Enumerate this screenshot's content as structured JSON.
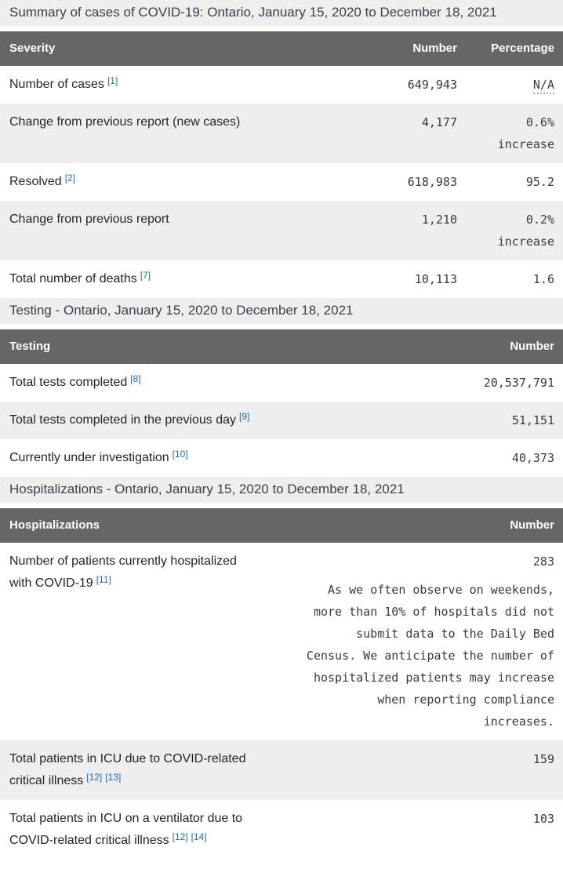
{
  "report": {
    "tables": [
      {
        "caption": "Summary of cases of COVID-19: Ontario, January 15, 2020 to December 18, 2021",
        "columns": [
          "Severity",
          "Number",
          "Percentage"
        ],
        "rows": [
          {
            "label": "Number of cases",
            "refs": [
              "[1]"
            ],
            "number": "649,943",
            "percentage": "N/A",
            "na_tooltip": true
          },
          {
            "label": "Change from previous report (new cases)",
            "refs": [],
            "number": "4,177",
            "percentage": "0.6% increase"
          },
          {
            "label": "Resolved",
            "refs": [
              "[2]"
            ],
            "number": "618,983",
            "percentage": "95.2"
          },
          {
            "label": "Change from previous report",
            "refs": [],
            "number": "1,210",
            "percentage": "0.2% increase"
          },
          {
            "label": "Total number of deaths",
            "refs": [
              "[7]"
            ],
            "number": "10,113",
            "percentage": "1.6"
          }
        ]
      },
      {
        "caption": "Testing - Ontario, January 15, 2020 to December 18, 2021",
        "columns": [
          "Testing",
          "Number"
        ],
        "rows": [
          {
            "label": "Total tests completed",
            "refs": [
              "[8]"
            ],
            "number": "20,537,791"
          },
          {
            "label": "Total tests completed in the previous day",
            "refs": [
              "[9]"
            ],
            "number": "51,151"
          },
          {
            "label": "Currently under investigation",
            "refs": [
              "[10]"
            ],
            "number": "40,373"
          }
        ]
      },
      {
        "caption": "Hospitalizations - Ontario, January 15, 2020 to December 18, 2021",
        "columns": [
          "Hospitalizations",
          "Number"
        ],
        "rows": [
          {
            "label": "Number of patients currently hospitalized with COVID-19",
            "refs": [
              "[11]"
            ],
            "number": "283",
            "note": "As we often observe on weekends, more than 10% of hospitals did not submit data to the Daily Bed Census. We anticipate the number of hospitalized patients may increase when reporting compliance increases."
          },
          {
            "label": "Total patients in ICU due to COVID-related critical illness",
            "refs": [
              "[12]",
              "[13]"
            ],
            "number": "159"
          },
          {
            "label": "Total patients in ICU on a ventilator due to COVID-related critical illness",
            "refs": [
              "[12]",
              "[14]"
            ],
            "number": "103"
          }
        ]
      }
    ]
  },
  "colors": {
    "table_header_bg": "#666666",
    "table_header_text": "#ffffff",
    "caption_bg": "#eeeeee",
    "row_alt_bg": "#eeeeee",
    "footnote_link": "#1a6cb2",
    "body_text": "#252525"
  }
}
